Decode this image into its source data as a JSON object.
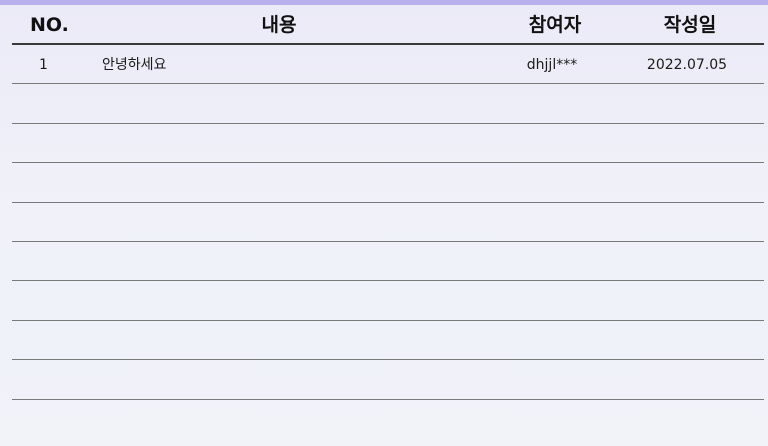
{
  "table": {
    "headers": {
      "no": "NO.",
      "content": "내용",
      "author": "참여자",
      "date": "작성일"
    },
    "rows": [
      {
        "no": "1",
        "content": "안녕하세요",
        "author": "dhjjl***",
        "date": "2022.07.05"
      }
    ]
  },
  "colors": {
    "accent_bar": "#b9b1ee",
    "header_rule": "#3a3a3a",
    "row_rule": "#7a7a7a"
  }
}
